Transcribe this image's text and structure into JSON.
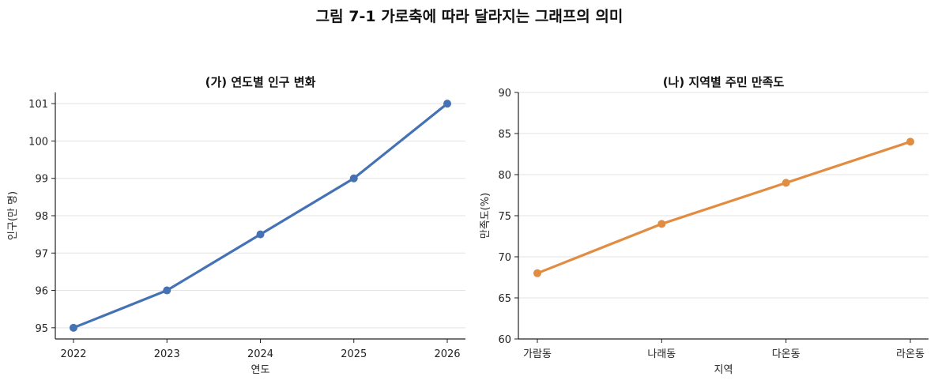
{
  "figure_title": "그림 7-1  가로축에 따라 달라지는 그래프의 의미",
  "chart_data": [
    {
      "type": "line",
      "title": "(가) 연도별 인구 변화",
      "xlabel": "연도",
      "ylabel": "인구(만 명)",
      "categories": [
        "2022",
        "2023",
        "2024",
        "2025",
        "2026"
      ],
      "values": [
        95,
        96,
        97.5,
        99,
        101
      ],
      "ylim": [
        94.7,
        101.3
      ],
      "yticks": [
        "95",
        "96",
        "97",
        "98",
        "99",
        "100",
        "101"
      ],
      "grid": "horizontal",
      "color": "#4472B4",
      "marker": "circle"
    },
    {
      "type": "line",
      "title": "(나) 지역별 주민 만족도",
      "xlabel": "지역",
      "ylabel": "만족도(%)",
      "categories": [
        "가람동",
        "나래동",
        "다온동",
        "라온동"
      ],
      "values": [
        68,
        74,
        79,
        84
      ],
      "ylim": [
        60,
        90
      ],
      "yticks": [
        "60",
        "65",
        "70",
        "75",
        "80",
        "85",
        "90"
      ],
      "grid": "horizontal",
      "color": "#E28C42",
      "marker": "circle"
    }
  ]
}
